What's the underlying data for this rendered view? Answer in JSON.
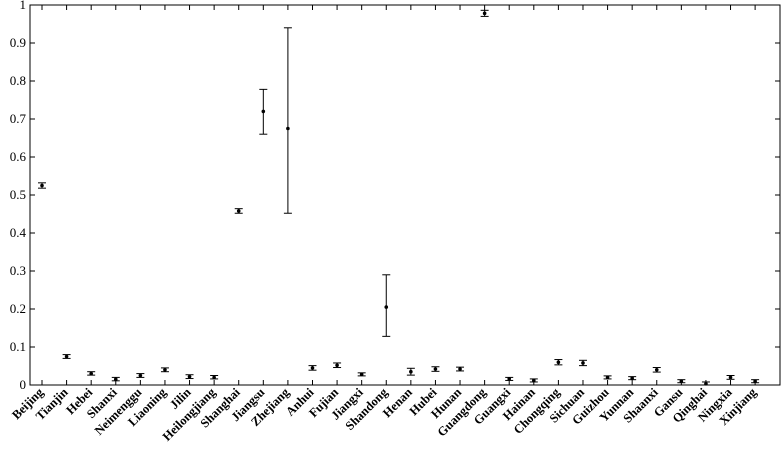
{
  "chart_data": {
    "type": "scatter",
    "title": "",
    "xlabel": "",
    "ylabel": "",
    "ylim": [
      0,
      1
    ],
    "yticks": [
      0,
      0.1,
      0.2,
      0.3,
      0.4,
      0.5,
      0.6,
      0.7,
      0.8,
      0.9,
      1
    ],
    "ytick_labels": [
      "0",
      "0.1",
      "0.2",
      "0.3",
      "0.4",
      "0.5",
      "0.6",
      "0.7",
      "0.8",
      "0.9",
      "1"
    ],
    "grid": false,
    "error_bars": true,
    "categories": [
      "Beijing",
      "Tianjin",
      "Hebei",
      "Shanxi",
      "Neimenggu",
      "Liaoning",
      "Jilin",
      "Heilongjiang",
      "Shanghai",
      "Jiangsu",
      "Zhejiang",
      "Anhui",
      "Fujian",
      "Jiangxi",
      "Shandong",
      "Henan",
      "Hubei",
      "Hunan",
      "Guangdong",
      "Guangxi",
      "Hainan",
      "Chongqing",
      "Sichuan",
      "Guizhou",
      "Yunnan",
      "Shaanxi",
      "Gansu",
      "Qinghai",
      "Ningxia",
      "Xinjiang"
    ],
    "values": [
      0.525,
      0.075,
      0.03,
      0.015,
      0.025,
      0.04,
      0.022,
      0.02,
      0.458,
      0.72,
      0.675,
      0.045,
      0.052,
      0.028,
      0.205,
      0.035,
      0.042,
      0.042,
      0.978,
      0.016,
      0.012,
      0.06,
      0.058,
      0.02,
      0.018,
      0.04,
      0.01,
      0.003,
      0.02,
      0.01
    ],
    "lower": [
      0.518,
      0.07,
      0.026,
      0.011,
      0.02,
      0.035,
      0.017,
      0.016,
      0.452,
      0.66,
      0.452,
      0.039,
      0.046,
      0.024,
      0.128,
      0.026,
      0.036,
      0.037,
      0.97,
      0.012,
      0.008,
      0.053,
      0.051,
      0.016,
      0.014,
      0.034,
      0.006,
      0.0,
      0.015,
      0.006
    ],
    "upper": [
      0.532,
      0.08,
      0.035,
      0.02,
      0.03,
      0.045,
      0.027,
      0.025,
      0.464,
      0.778,
      0.94,
      0.051,
      0.058,
      0.032,
      0.29,
      0.044,
      0.048,
      0.047,
      0.986,
      0.02,
      0.016,
      0.067,
      0.065,
      0.024,
      0.022,
      0.046,
      0.014,
      0.008,
      0.025,
      0.014
    ]
  }
}
